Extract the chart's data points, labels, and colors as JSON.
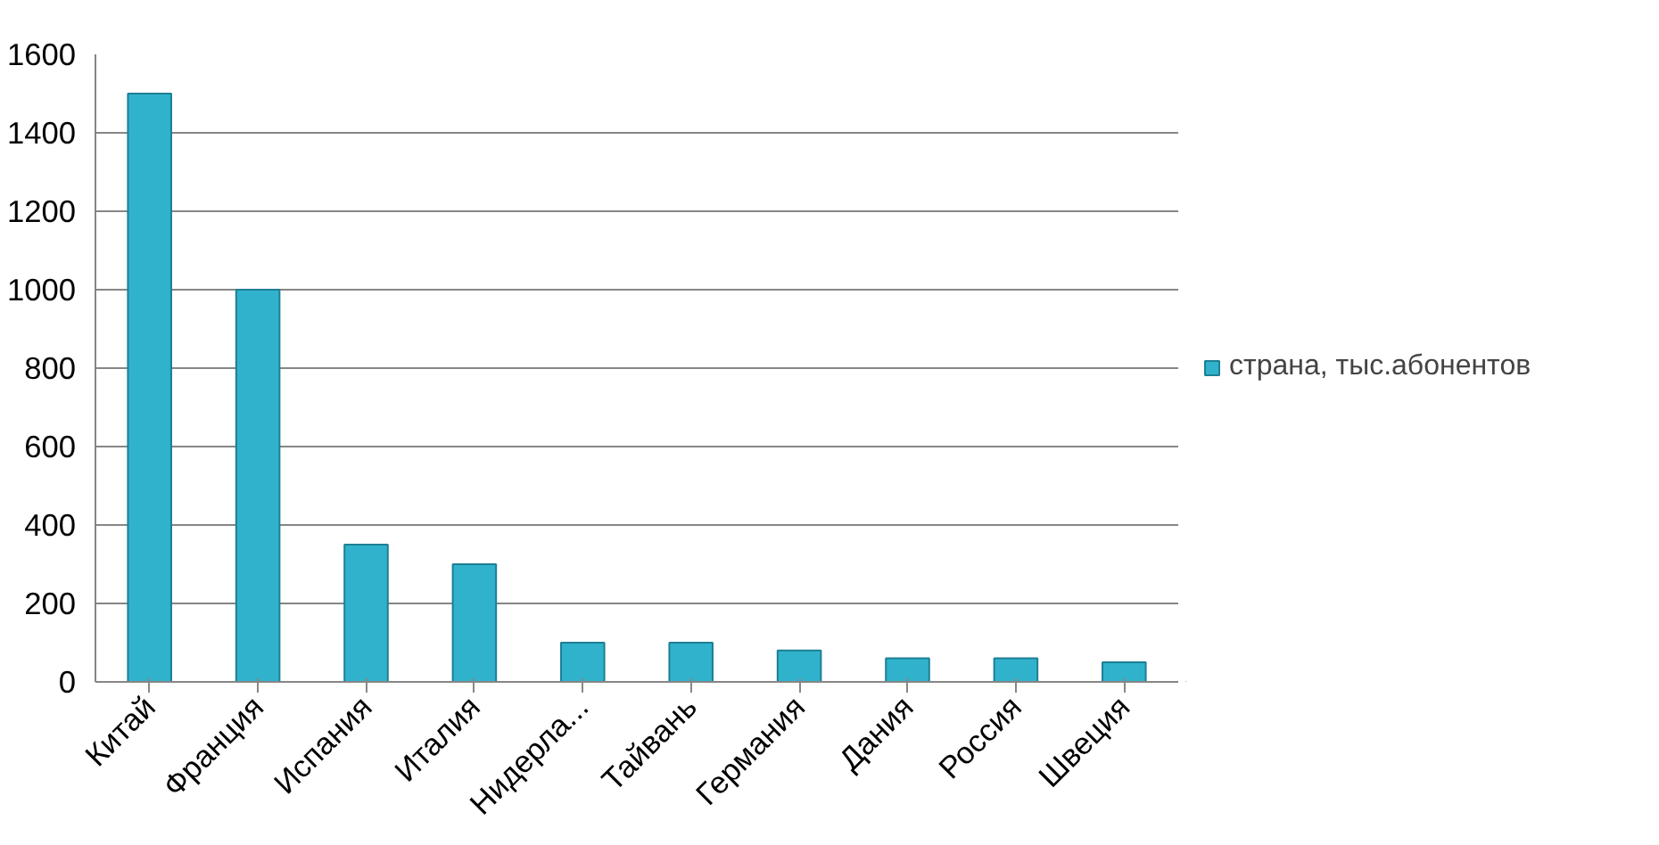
{
  "chart_data": {
    "type": "bar",
    "categories": [
      "Китай",
      "Франция",
      "Испания",
      "Италия",
      "Нидерла...",
      "Тайвань",
      "Германия",
      "Дания",
      "Россия",
      "Швеция"
    ],
    "series": [
      {
        "name": "страна, тыс.абонентов",
        "color": "#31b2cc",
        "values": [
          1500,
          1000,
          350,
          300,
          100,
          100,
          80,
          60,
          60,
          50
        ]
      }
    ],
    "ylim": [
      0,
      1600
    ],
    "yticks": [
      0,
      200,
      400,
      600,
      800,
      1000,
      1200,
      1400,
      1600
    ],
    "grid": "y",
    "legend": "right"
  }
}
